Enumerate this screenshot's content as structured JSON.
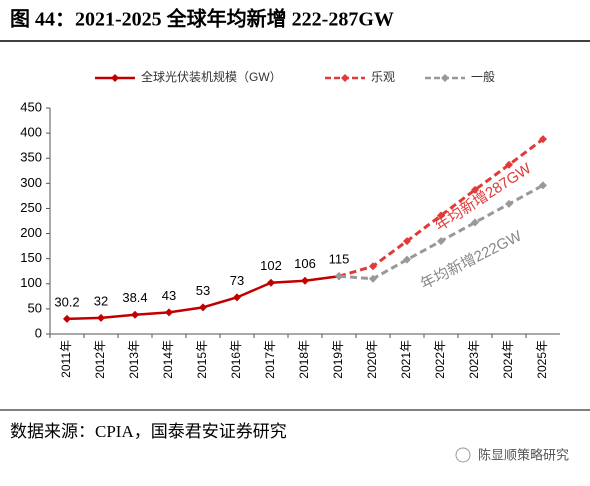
{
  "chart_data": {
    "type": "line",
    "title": "图 44：2021-2025 全球年均新增 222-287GW",
    "categories": [
      "2011年",
      "2012年",
      "2013年",
      "2014年",
      "2015年",
      "2016年",
      "2017年",
      "2018年",
      "2019年",
      "2020年",
      "2021年",
      "2022年",
      "2023年",
      "2024年",
      "2025年"
    ],
    "series": [
      {
        "name": "全球光伏装机规模（GW）",
        "color": "#c00000",
        "dashed": false,
        "labels": true,
        "values": [
          30.2,
          32,
          38.4,
          43,
          53,
          73,
          102,
          106,
          115,
          null,
          null,
          null,
          null,
          null,
          null
        ]
      },
      {
        "name": "乐观",
        "color": "#e03a3a",
        "dashed": true,
        "labels": false,
        "values": [
          null,
          null,
          null,
          null,
          null,
          null,
          null,
          null,
          115,
          135,
          185,
          236,
          287,
          337,
          388
        ]
      },
      {
        "name": "一般",
        "color": "#999999",
        "dashed": true,
        "labels": false,
        "values": [
          null,
          null,
          null,
          null,
          null,
          null,
          null,
          null,
          115,
          110,
          148,
          185,
          222,
          259,
          296
        ]
      }
    ],
    "annotations": [
      "年均新增287GW",
      "年均新增222GW"
    ],
    "ylim": [
      0,
      450
    ],
    "yticks": [
      0,
      50,
      100,
      150,
      200,
      250,
      300,
      350,
      400,
      450
    ],
    "grid": false,
    "source": "数据来源：CPIA，国泰君安证券研究",
    "watermark": "陈显顺策略研究"
  }
}
